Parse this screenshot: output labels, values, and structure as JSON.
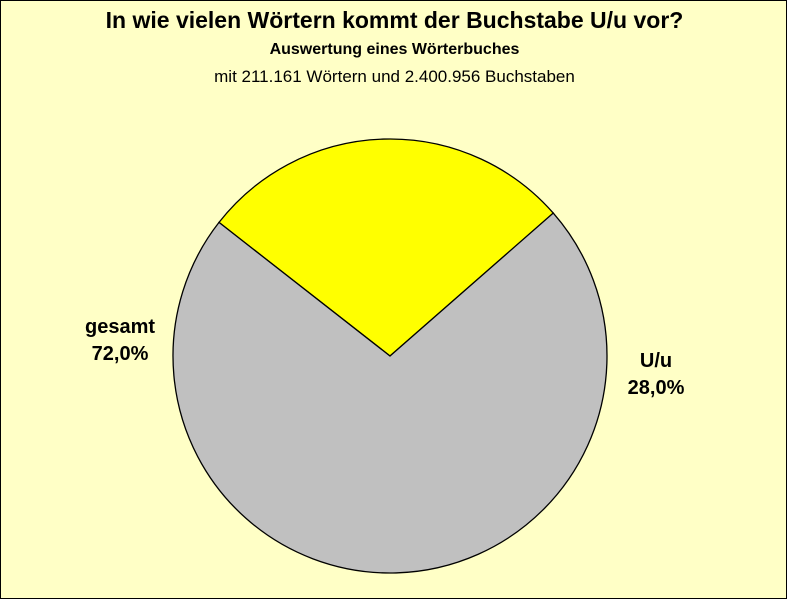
{
  "chart_data": {
    "type": "pie",
    "title": "In wie vielen Wörtern kommt der Buchstabe U/u vor?",
    "subtitle": "Auswertung eines Wörterbuches",
    "subtitle2": "mit 211.161 Wörtern und 2.400.956 Buchstaben",
    "slices": [
      {
        "label": "U/u",
        "value": 28.0,
        "value_label": "28,0%",
        "color": "#ffff00"
      },
      {
        "label": "gesamt",
        "value": 72.0,
        "value_label": "72,0%",
        "color": "#c0c0c0"
      }
    ],
    "legend": "none"
  }
}
